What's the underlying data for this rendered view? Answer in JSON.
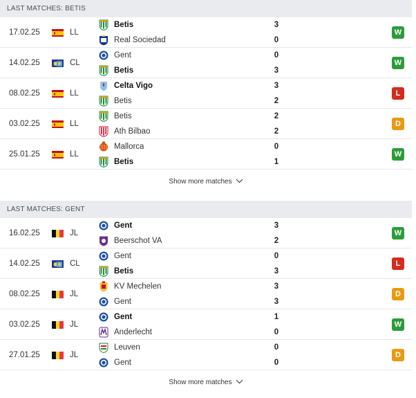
{
  "sections": [
    {
      "title": "LAST MATCHES: BETIS",
      "matches": [
        {
          "date": "17.02.25",
          "flag": "es",
          "comp": "LL",
          "home": {
            "name": "Betis",
            "crest": "betis",
            "bold": true
          },
          "away": {
            "name": "Real Sociedad",
            "crest": "real-sociedad",
            "bold": false
          },
          "home_score": "3",
          "away_score": "0",
          "result": "W"
        },
        {
          "date": "14.02.25",
          "flag": "cl",
          "comp": "CL",
          "home": {
            "name": "Gent",
            "crest": "gent",
            "bold": false
          },
          "away": {
            "name": "Betis",
            "crest": "betis",
            "bold": true
          },
          "home_score": "0",
          "away_score": "3",
          "result": "W"
        },
        {
          "date": "08.02.25",
          "flag": "es",
          "comp": "LL",
          "home": {
            "name": "Celta Vigo",
            "crest": "celta",
            "bold": true
          },
          "away": {
            "name": "Betis",
            "crest": "betis",
            "bold": false
          },
          "home_score": "3",
          "away_score": "2",
          "result": "L"
        },
        {
          "date": "03.02.25",
          "flag": "es",
          "comp": "LL",
          "home": {
            "name": "Betis",
            "crest": "betis",
            "bold": false
          },
          "away": {
            "name": "Ath Bilbao",
            "crest": "bilbao",
            "bold": false
          },
          "home_score": "2",
          "away_score": "2",
          "result": "D"
        },
        {
          "date": "25.01.25",
          "flag": "es",
          "comp": "LL",
          "home": {
            "name": "Mallorca",
            "crest": "mallorca",
            "bold": false
          },
          "away": {
            "name": "Betis",
            "crest": "betis",
            "bold": true
          },
          "home_score": "0",
          "away_score": "1",
          "result": "W"
        }
      ],
      "show_more": "Show more matches"
    },
    {
      "title": "LAST MATCHES: GENT",
      "matches": [
        {
          "date": "16.02.25",
          "flag": "be",
          "comp": "JL",
          "home": {
            "name": "Gent",
            "crest": "gent",
            "bold": true
          },
          "away": {
            "name": "Beerschot VA",
            "crest": "beerschot",
            "bold": false
          },
          "home_score": "3",
          "away_score": "2",
          "result": "W"
        },
        {
          "date": "14.02.25",
          "flag": "cl",
          "comp": "CL",
          "home": {
            "name": "Gent",
            "crest": "gent",
            "bold": false
          },
          "away": {
            "name": "Betis",
            "crest": "betis",
            "bold": true
          },
          "home_score": "0",
          "away_score": "3",
          "result": "L"
        },
        {
          "date": "08.02.25",
          "flag": "be",
          "comp": "JL",
          "home": {
            "name": "KV Mechelen",
            "crest": "mechelen",
            "bold": false
          },
          "away": {
            "name": "Gent",
            "crest": "gent",
            "bold": false
          },
          "home_score": "3",
          "away_score": "3",
          "result": "D"
        },
        {
          "date": "03.02.25",
          "flag": "be",
          "comp": "JL",
          "home": {
            "name": "Gent",
            "crest": "gent",
            "bold": true
          },
          "away": {
            "name": "Anderlecht",
            "crest": "anderlecht",
            "bold": false
          },
          "home_score": "1",
          "away_score": "0",
          "result": "W"
        },
        {
          "date": "27.01.25",
          "flag": "be",
          "comp": "JL",
          "home": {
            "name": "Leuven",
            "crest": "leuven",
            "bold": false
          },
          "away": {
            "name": "Gent",
            "crest": "gent",
            "bold": false
          },
          "home_score": "0",
          "away_score": "0",
          "result": "D"
        }
      ],
      "show_more": "Show more matches"
    }
  ],
  "colors": {
    "win": "#2c9c3a",
    "loss": "#d42b1e",
    "draw": "#e99a12",
    "header_bg": "#e9ebee"
  }
}
